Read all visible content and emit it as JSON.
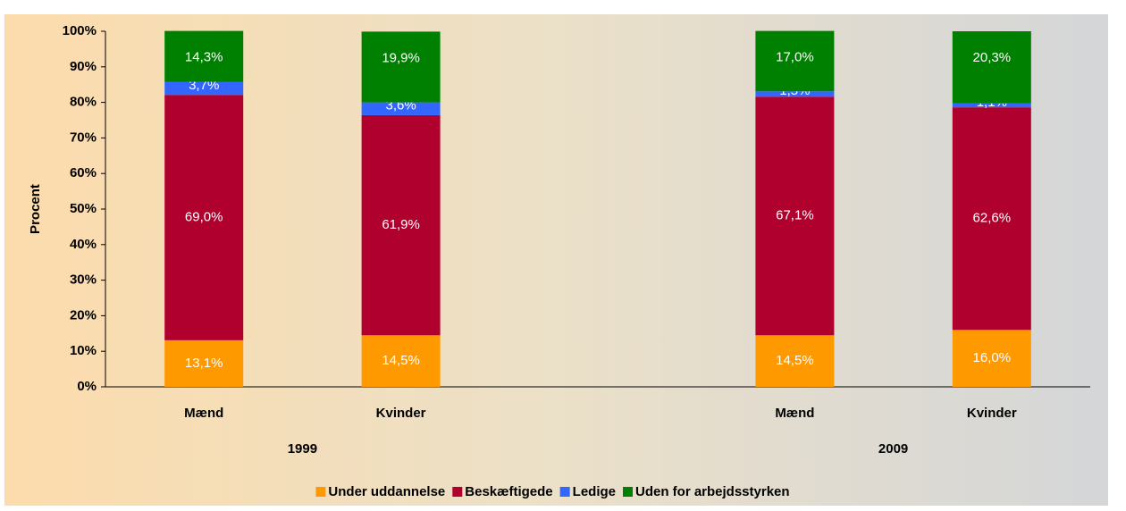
{
  "chart_data": {
    "type": "stacked_bar",
    "y_label": "Procent",
    "categories": [
      "Mænd",
      "Kvinder",
      null,
      "Mænd",
      "Kvinder"
    ],
    "groups": [
      "1999",
      "2009"
    ],
    "series": [
      {
        "name": "Under uddannelse",
        "color": "#ff9900",
        "values": [
          13.1,
          14.5,
          null,
          14.5,
          16.0
        ],
        "value_labels": [
          "13,1%",
          "14,5%",
          null,
          "14,5%",
          "16,0%"
        ]
      },
      {
        "name": "Beskæftigede",
        "color": "#b0002e",
        "values": [
          69.0,
          61.9,
          null,
          67.1,
          62.6
        ],
        "value_labels": [
          "69,0%",
          "61,9%",
          null,
          "67,1%",
          "62,6%"
        ]
      },
      {
        "name": "Ledige",
        "color": "#3366ff",
        "values": [
          3.7,
          3.6,
          null,
          1.5,
          1.1
        ],
        "value_labels": [
          "3,7%",
          "3,6%",
          null,
          "1,5%",
          "1,1%"
        ]
      },
      {
        "name": "Uden for arbejdsstyrken",
        "color": "#008000",
        "values": [
          14.3,
          19.9,
          null,
          17.0,
          20.3
        ],
        "value_labels": [
          "14,3%",
          "19,9%",
          null,
          "17,0%",
          "20,3%"
        ]
      }
    ],
    "ylim": [
      0,
      100
    ],
    "yticks": [
      {
        "value": 0,
        "label": "0%"
      },
      {
        "value": 10,
        "label": "10%"
      },
      {
        "value": 20,
        "label": "20%"
      },
      {
        "value": 30,
        "label": "30%"
      },
      {
        "value": 40,
        "label": "40%"
      },
      {
        "value": 50,
        "label": "50%"
      },
      {
        "value": 60,
        "label": "60%"
      },
      {
        "value": 70,
        "label": "70%"
      },
      {
        "value": 80,
        "label": "80%"
      },
      {
        "value": 90,
        "label": "90%"
      },
      {
        "value": 100,
        "label": "100%"
      }
    ],
    "legend": "bottom"
  }
}
